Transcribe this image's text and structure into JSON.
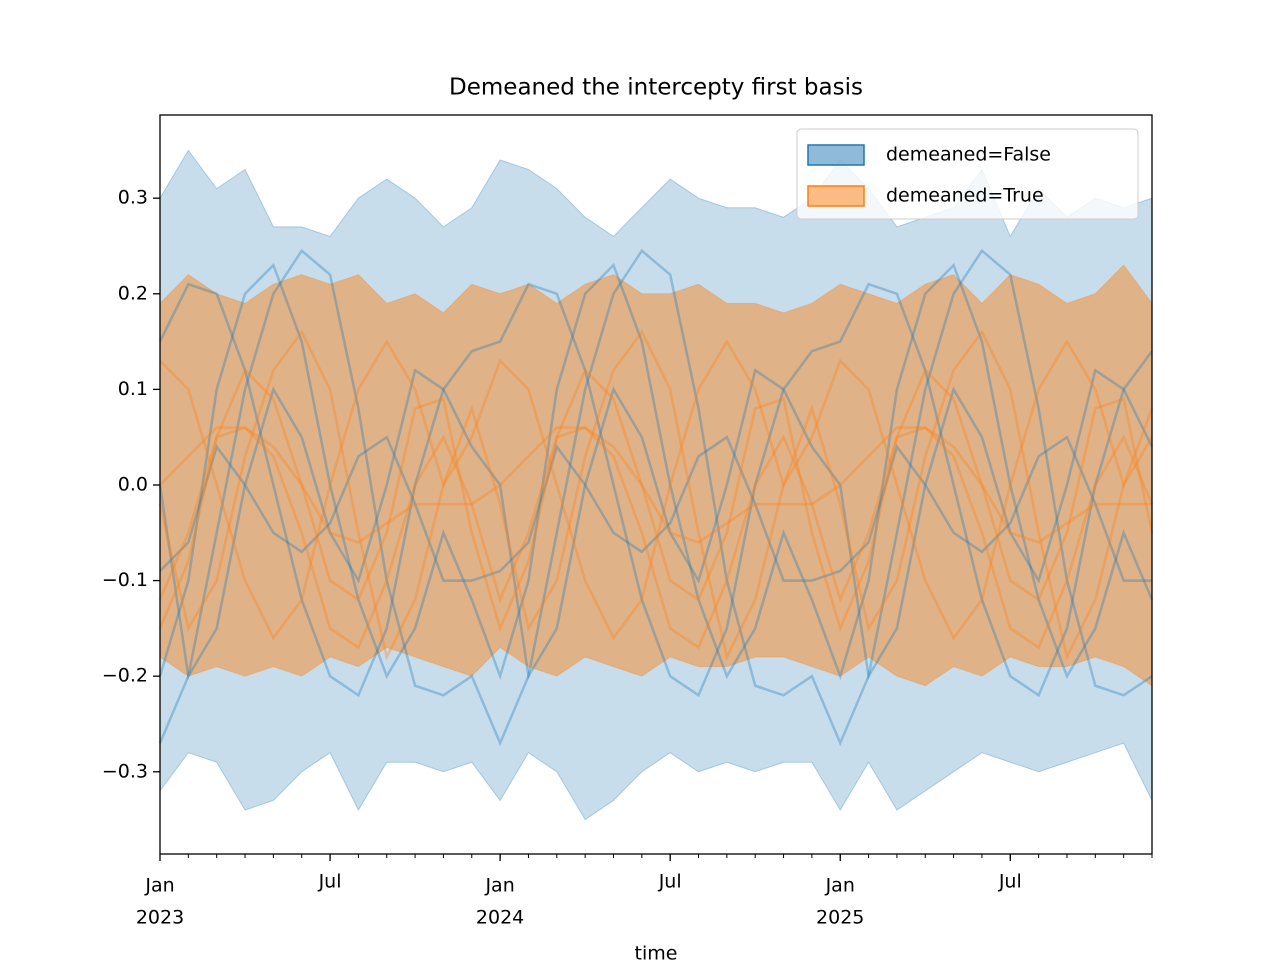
{
  "chart_data": {
    "type": "band-line",
    "title": "Demeaned the intercepty first basis",
    "xlabel": "time",
    "x": [
      "2023-01",
      "2023-02",
      "2023-03",
      "2023-04",
      "2023-05",
      "2023-06",
      "2023-07",
      "2023-08",
      "2023-09",
      "2023-10",
      "2023-11",
      "2023-12",
      "2024-01",
      "2024-02",
      "2024-03",
      "2024-04",
      "2024-05",
      "2024-06",
      "2024-07",
      "2024-08",
      "2024-09",
      "2024-10",
      "2024-11",
      "2024-12",
      "2025-01",
      "2025-02",
      "2025-03",
      "2025-04",
      "2025-05",
      "2025-06",
      "2025-07",
      "2025-08",
      "2025-09",
      "2025-10",
      "2025-11",
      "2025-12"
    ],
    "xlim": [
      "2023-01",
      "2025-12"
    ],
    "xticks": [
      {
        "value": "2023-01",
        "label": "Jan",
        "year": "2023"
      },
      {
        "value": "2023-07",
        "label": "Jul"
      },
      {
        "value": "2024-01",
        "label": "Jan",
        "year": "2024"
      },
      {
        "value": "2024-07",
        "label": "Jul"
      },
      {
        "value": "2025-01",
        "label": "Jan",
        "year": "2025"
      },
      {
        "value": "2025-07",
        "label": "Jul"
      }
    ],
    "ylim": [
      -0.386,
      0.387
    ],
    "yticks": [
      {
        "value": -0.3,
        "label": "−0.3"
      },
      {
        "value": -0.2,
        "label": "−0.2"
      },
      {
        "value": -0.1,
        "label": "−0.1"
      },
      {
        "value": 0,
        "label": "0.0"
      },
      0.1,
      0.2,
      0.3
    ],
    "legend": "upper right",
    "series": [
      {
        "name": "demeaned=False",
        "color": "#1f77b4",
        "upper": [
          0.3,
          0.35,
          0.31,
          0.33,
          0.27,
          0.27,
          0.26,
          0.3,
          0.32,
          0.3,
          0.27,
          0.29,
          0.34,
          0.33,
          0.31,
          0.28,
          0.26,
          0.29,
          0.32,
          0.3,
          0.29,
          0.29,
          0.28,
          0.3,
          0.34,
          0.31,
          0.27,
          0.28,
          0.29,
          0.33,
          0.26,
          0.31,
          0.28,
          0.3,
          0.29,
          0.3
        ],
        "lower": [
          -0.32,
          -0.28,
          -0.29,
          -0.34,
          -0.33,
          -0.3,
          -0.28,
          -0.34,
          -0.29,
          -0.29,
          -0.3,
          -0.29,
          -0.33,
          -0.28,
          -0.3,
          -0.35,
          -0.33,
          -0.3,
          -0.28,
          -0.3,
          -0.29,
          -0.3,
          -0.29,
          -0.29,
          -0.34,
          -0.29,
          -0.34,
          -0.32,
          -0.3,
          -0.28,
          -0.29,
          -0.3,
          -0.29,
          -0.28,
          -0.27,
          -0.33
        ]
      },
      {
        "name": "demeaned=True",
        "color": "#ff7f0e",
        "upper": [
          0.19,
          0.22,
          0.2,
          0.19,
          0.21,
          0.22,
          0.21,
          0.22,
          0.19,
          0.2,
          0.18,
          0.21,
          0.2,
          0.21,
          0.19,
          0.21,
          0.22,
          0.2,
          0.2,
          0.21,
          0.19,
          0.19,
          0.18,
          0.19,
          0.21,
          0.2,
          0.19,
          0.21,
          0.22,
          0.19,
          0.22,
          0.21,
          0.19,
          0.2,
          0.23,
          0.19
        ],
        "lower": [
          -0.18,
          -0.2,
          -0.19,
          -0.2,
          -0.19,
          -0.2,
          -0.18,
          -0.19,
          -0.17,
          -0.18,
          -0.19,
          -0.2,
          -0.17,
          -0.19,
          -0.2,
          -0.18,
          -0.19,
          -0.2,
          -0.18,
          -0.19,
          -0.19,
          -0.18,
          -0.18,
          -0.19,
          -0.2,
          -0.18,
          -0.2,
          -0.21,
          -0.19,
          -0.2,
          -0.18,
          -0.19,
          -0.19,
          -0.18,
          -0.19,
          -0.21
        ]
      }
    ],
    "lines": [
      {
        "color": "#1f77b4",
        "values": [
          -0.27,
          -0.2,
          -0.05,
          0.1,
          0.2,
          0.245,
          0.22,
          0.08,
          -0.1,
          -0.21,
          -0.22,
          -0.2,
          -0.27,
          -0.2,
          -0.05,
          0.1,
          0.2,
          0.245,
          0.22,
          0.08,
          -0.1,
          -0.21,
          -0.22,
          -0.2,
          -0.27,
          -0.2,
          -0.05,
          0.1,
          0.2,
          0.245,
          0.22,
          0.08,
          -0.1,
          -0.21,
          -0.22,
          -0.2
        ]
      },
      {
        "color": "#1f77b4",
        "values": [
          0.15,
          0.21,
          0.2,
          0.12,
          0.0,
          -0.12,
          -0.2,
          -0.22,
          -0.15,
          0.0,
          0.1,
          0.14,
          0.15,
          0.21,
          0.2,
          0.12,
          0.0,
          -0.12,
          -0.2,
          -0.22,
          -0.15,
          0.0,
          0.1,
          0.14,
          0.15,
          0.21,
          0.2,
          0.12,
          0.0,
          -0.12,
          -0.2,
          -0.22,
          -0.15,
          0.0,
          0.1,
          0.14
        ]
      },
      {
        "color": "#1f77b4",
        "values": [
          0.0,
          -0.2,
          -0.15,
          0.0,
          0.1,
          0.05,
          -0.05,
          -0.1,
          0.0,
          0.12,
          0.1,
          0.04,
          0.0,
          -0.2,
          -0.15,
          0.0,
          0.1,
          0.05,
          -0.05,
          -0.1,
          0.0,
          0.12,
          0.1,
          0.04,
          0.0,
          -0.2,
          -0.15,
          0.0,
          0.1,
          0.05,
          -0.05,
          -0.1,
          0.0,
          0.12,
          0.1,
          0.04
        ]
      },
      {
        "color": "#1f77b4",
        "values": [
          -0.09,
          -0.06,
          0.04,
          0.0,
          -0.05,
          -0.07,
          -0.04,
          0.03,
          0.05,
          -0.02,
          -0.1,
          -0.1,
          -0.09,
          -0.06,
          0.04,
          0.0,
          -0.05,
          -0.07,
          -0.04,
          0.03,
          0.05,
          -0.02,
          -0.1,
          -0.1,
          -0.09,
          -0.06,
          0.04,
          0.0,
          -0.05,
          -0.07,
          -0.04,
          0.03,
          0.05,
          -0.02,
          -0.1,
          -0.1
        ]
      },
      {
        "color": "#1f77b4",
        "values": [
          -0.2,
          -0.1,
          0.1,
          0.2,
          0.23,
          0.15,
          0.0,
          -0.12,
          -0.2,
          -0.15,
          -0.05,
          -0.12,
          -0.2,
          -0.1,
          0.1,
          0.2,
          0.23,
          0.15,
          0.0,
          -0.12,
          -0.2,
          -0.15,
          -0.05,
          -0.12,
          -0.2,
          -0.1,
          0.1,
          0.2,
          0.23,
          0.15,
          0.0,
          -0.12,
          -0.2,
          -0.15,
          -0.05,
          -0.12
        ]
      },
      {
        "color": "#ff7f0e",
        "values": [
          0.13,
          0.1,
          0.0,
          -0.1,
          -0.16,
          -0.12,
          0.0,
          0.1,
          0.15,
          0.1,
          0.0,
          0.05,
          0.13,
          0.1,
          0.0,
          -0.1,
          -0.16,
          -0.12,
          0.0,
          0.1,
          0.15,
          0.1,
          0.0,
          0.05,
          0.13,
          0.1,
          0.0,
          -0.1,
          -0.16,
          -0.12,
          0.0,
          0.1,
          0.15,
          0.1,
          0.0,
          0.05
        ]
      },
      {
        "color": "#ff7f0e",
        "values": [
          -0.12,
          -0.05,
          0.05,
          0.06,
          0.03,
          -0.05,
          -0.15,
          -0.17,
          -0.1,
          0.0,
          0.05,
          -0.02,
          -0.12,
          -0.05,
          0.05,
          0.06,
          0.03,
          -0.05,
          -0.15,
          -0.17,
          -0.1,
          0.0,
          0.05,
          -0.02,
          -0.12,
          -0.05,
          0.05,
          0.06,
          0.03,
          -0.05,
          -0.15,
          -0.17,
          -0.1,
          0.0,
          0.05,
          -0.02
        ]
      },
      {
        "color": "#ff7f0e",
        "values": [
          0.0,
          0.03,
          0.06,
          0.06,
          0.04,
          0.0,
          -0.05,
          -0.06,
          -0.04,
          -0.02,
          -0.02,
          -0.02,
          0.0,
          0.03,
          0.06,
          0.06,
          0.04,
          0.0,
          -0.05,
          -0.06,
          -0.04,
          -0.02,
          -0.02,
          -0.02,
          0.0,
          0.03,
          0.06,
          0.06,
          0.04,
          0.0,
          -0.05,
          -0.06,
          -0.04,
          -0.02,
          -0.02,
          -0.02
        ]
      },
      {
        "color": "#ff7f0e",
        "values": [
          -0.02,
          -0.15,
          -0.1,
          0.03,
          0.12,
          0.16,
          0.1,
          -0.05,
          -0.18,
          -0.12,
          0.0,
          0.08,
          -0.02,
          -0.15,
          -0.1,
          0.03,
          0.12,
          0.16,
          0.1,
          -0.05,
          -0.18,
          -0.12,
          0.0,
          0.08,
          -0.02,
          -0.15,
          -0.1,
          0.03,
          0.12,
          0.16,
          0.1,
          -0.05,
          -0.18,
          -0.12,
          0.0,
          0.08
        ]
      },
      {
        "color": "#ff7f0e",
        "values": [
          -0.15,
          -0.08,
          0.05,
          0.12,
          0.09,
          0.0,
          -0.1,
          -0.12,
          -0.05,
          0.08,
          0.09,
          -0.05,
          -0.15,
          -0.08,
          0.05,
          0.12,
          0.09,
          0.0,
          -0.1,
          -0.12,
          -0.05,
          0.08,
          0.09,
          -0.05,
          -0.15,
          -0.08,
          0.05,
          0.12,
          0.09,
          0.0,
          -0.1,
          -0.12,
          -0.05,
          0.08,
          0.09,
          -0.05
        ]
      }
    ]
  }
}
